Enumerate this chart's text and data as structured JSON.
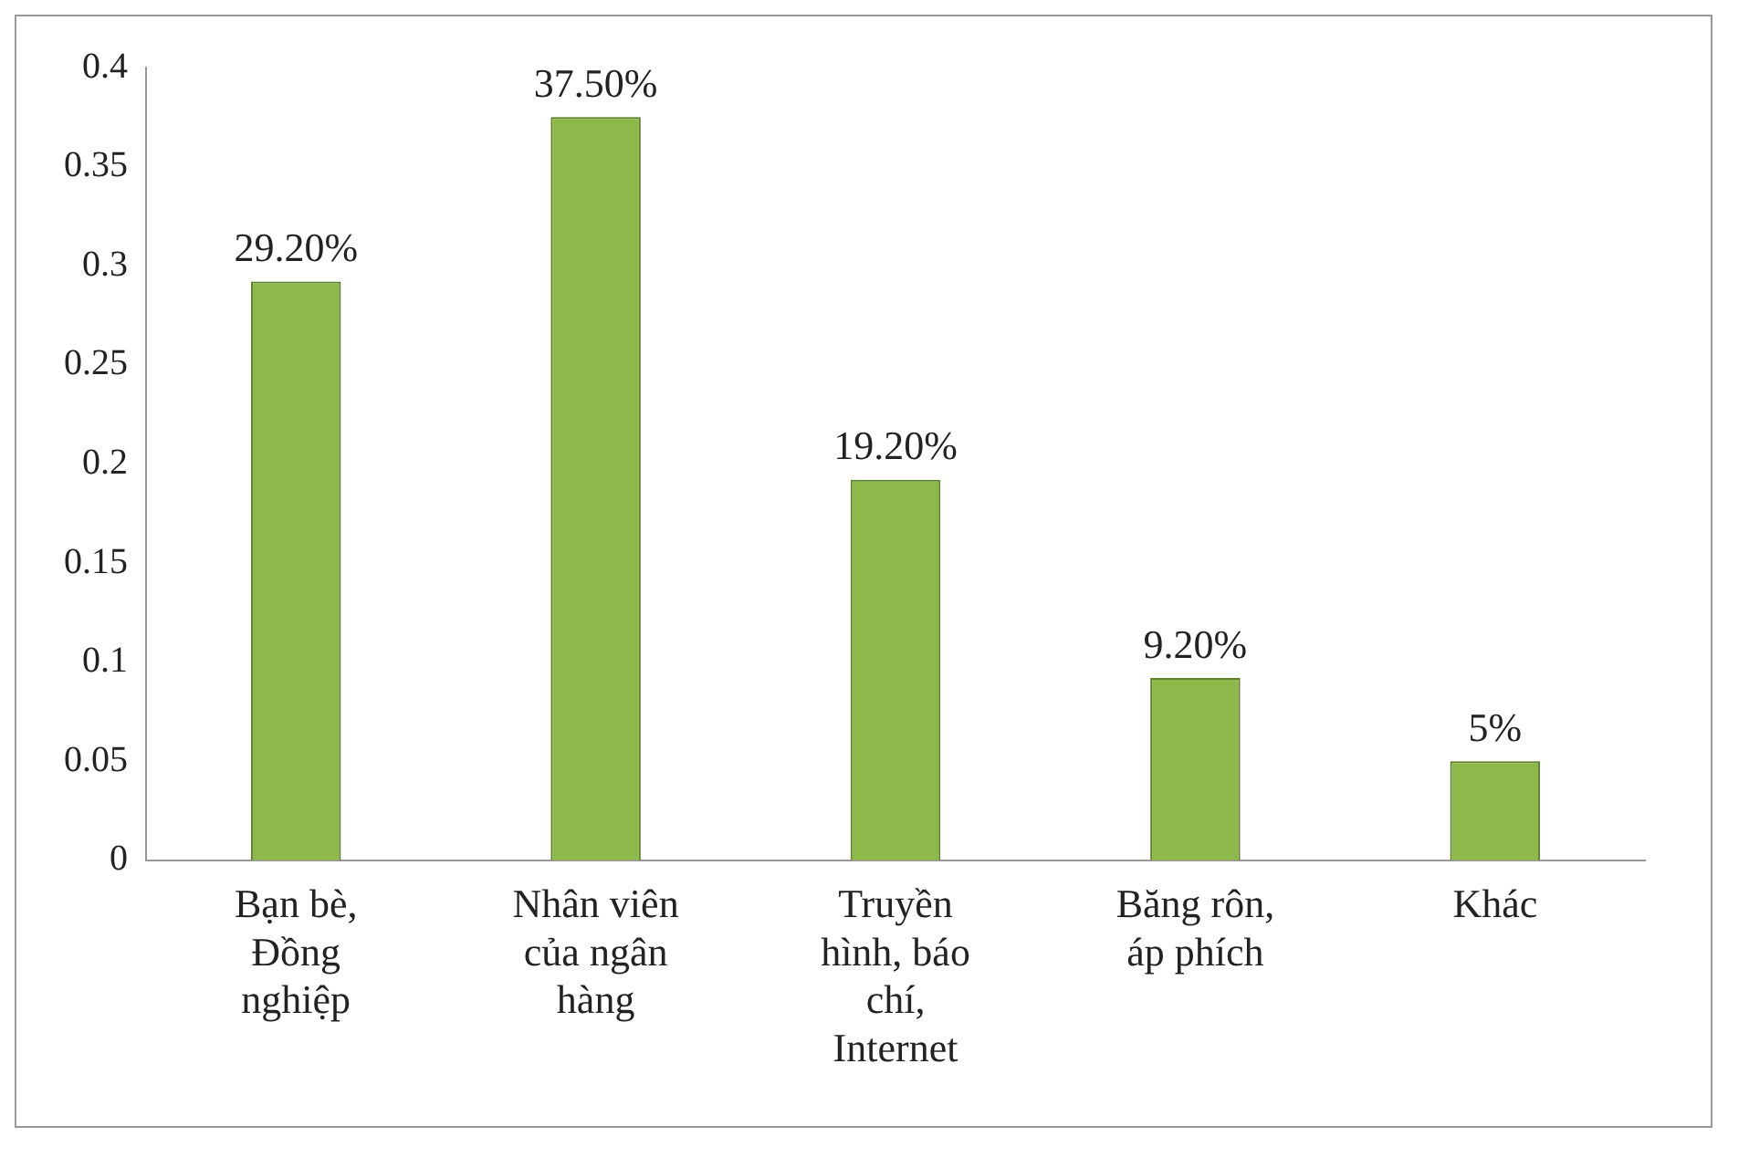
{
  "chart_data": {
    "type": "bar",
    "categories": [
      "Bạn bè, Đồng nghiệp",
      "Nhân viên của ngân hàng",
      "Truyền hình, báo chí, Internet",
      "Băng rôn, áp phích",
      "Khác"
    ],
    "values": [
      0.292,
      0.375,
      0.192,
      0.092,
      0.05
    ],
    "value_labels": [
      "29.20%",
      "37.50%",
      "19.20%",
      "9.20%",
      "5%"
    ],
    "color": "#8db84a",
    "ylim": [
      0,
      0.4
    ],
    "yticks": [
      0,
      0.05,
      0.1,
      0.15,
      0.2,
      0.25,
      0.3,
      0.35,
      0.4
    ],
    "grid": false,
    "legend": false
  }
}
